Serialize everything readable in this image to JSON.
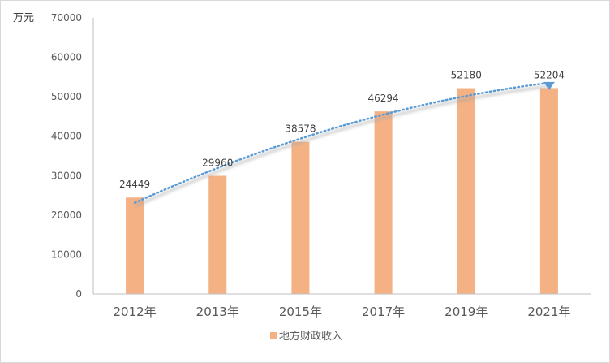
{
  "chart_data": {
    "type": "bar",
    "ylabel": "万元",
    "categories": [
      "2012年",
      "2013年",
      "2015年",
      "2017年",
      "2019年",
      "2021年"
    ],
    "series": [
      {
        "name": "地方财政收入",
        "values": [
          24449,
          29960,
          38578,
          46294,
          52180,
          52204
        ],
        "color": "#f4b183"
      }
    ],
    "data_labels": [
      "24449",
      "29960",
      "38578",
      "46294",
      "52180",
      "52204"
    ],
    "ylim": [
      0,
      70000
    ],
    "yticks": [
      0,
      10000,
      20000,
      30000,
      40000,
      50000,
      60000,
      70000
    ],
    "trendline": {
      "type": "polynomial",
      "color": "#5b9bd5",
      "style": "dotted",
      "forecast_marker": "arrow-down"
    },
    "grid": false,
    "legend": {
      "position": "bottom"
    }
  }
}
